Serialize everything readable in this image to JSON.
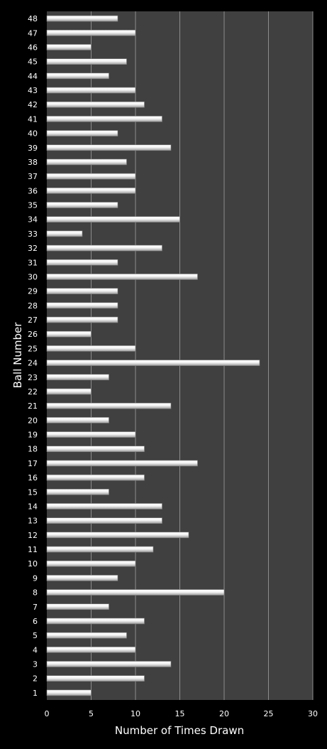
{
  "chart_data": {
    "type": "bar",
    "orientation": "horizontal",
    "title": "",
    "xlabel": "Number of Times Drawn",
    "ylabel": "Ball Number",
    "xlim": [
      0,
      30
    ],
    "xticks": [
      0,
      5,
      10,
      15,
      20,
      25,
      30
    ],
    "grid": true,
    "legend": "none",
    "colors": {
      "background": "#000000",
      "plot_area": "#404040",
      "gridline": "#8c8c8c",
      "bar": "#f2f2f2",
      "text": "#ffffff"
    },
    "categories": [
      "1",
      "2",
      "3",
      "4",
      "5",
      "6",
      "7",
      "8",
      "9",
      "10",
      "11",
      "12",
      "13",
      "14",
      "15",
      "16",
      "17",
      "18",
      "19",
      "20",
      "21",
      "22",
      "23",
      "24",
      "25",
      "26",
      "27",
      "28",
      "29",
      "30",
      "31",
      "32",
      "33",
      "34",
      "35",
      "36",
      "37",
      "38",
      "39",
      "40",
      "41",
      "42",
      "43",
      "44",
      "45",
      "46",
      "47",
      "48"
    ],
    "values": [
      5,
      11,
      14,
      10,
      9,
      11,
      7,
      20,
      8,
      10,
      12,
      16,
      13,
      13,
      7,
      11,
      17,
      11,
      10,
      7,
      14,
      5,
      7,
      24,
      10,
      5,
      8,
      8,
      8,
      17,
      8,
      13,
      4,
      15,
      8,
      10,
      10,
      9,
      14,
      8,
      13,
      11,
      10,
      7,
      9,
      5,
      10,
      8
    ]
  }
}
